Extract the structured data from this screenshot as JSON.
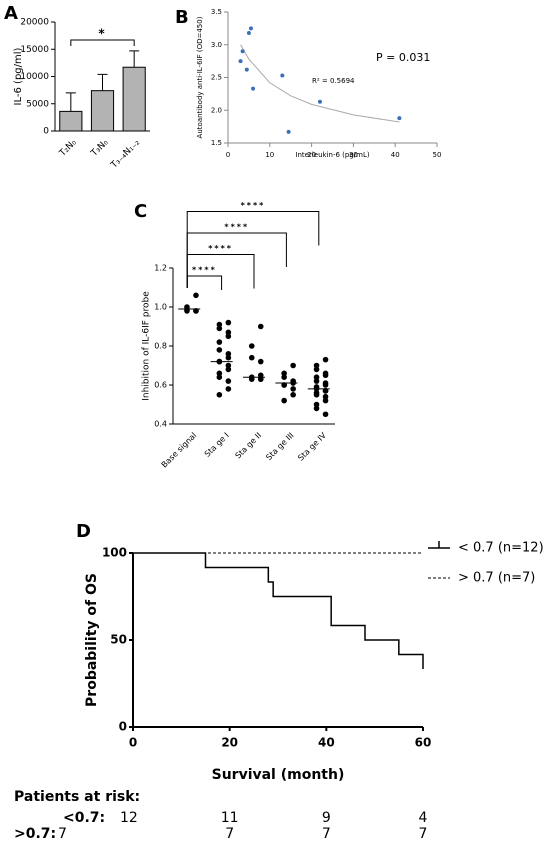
{
  "chart_data": [
    {
      "type": "bar",
      "panel_label": "A",
      "ylabel": "IL-6 (pg/ml)",
      "categories": [
        "T₂N₀",
        "T₃N₀",
        "T₃₋₄N₁₋₂"
      ],
      "values": [
        3600,
        7400,
        11700
      ],
      "errors": [
        3400,
        3000,
        3000
      ],
      "significance_labels": [
        null,
        null,
        "*"
      ],
      "color": "#b3b3b3",
      "ylim": [
        0,
        20000
      ],
      "yticks": [
        0,
        5000,
        10000,
        15000,
        20000
      ]
    },
    {
      "type": "scatter",
      "panel_label": "B",
      "xlabel": "Interleukin-6 (pg/mL)",
      "ylabel": "Autoantibody anti-IL-6IF (OD=450)",
      "x": [
        3,
        3.5,
        4.5,
        5,
        5.5,
        6,
        13,
        14.5,
        22,
        41
      ],
      "values": [
        2.75,
        2.9,
        2.62,
        3.18,
        3.25,
        2.33,
        2.53,
        1.67,
        2.13,
        1.88
      ],
      "color": "#3b6fb6",
      "trend_line": {
        "x": [
          3,
          5,
          10,
          15,
          20,
          30,
          41
        ],
        "y": [
          3.0,
          2.78,
          2.42,
          2.22,
          2.09,
          1.93,
          1.82
        ],
        "color": "#aaaaaa"
      },
      "annotations": [
        "R² = 0.5694",
        "P = 0.031"
      ],
      "xlim": [
        0,
        50
      ],
      "xticks": [
        0,
        10,
        20,
        30,
        40,
        50
      ],
      "ylim": [
        1.5,
        3.5
      ],
      "yticks": [
        1.5,
        {
          "value": 2,
          "label": "2.0"
        },
        2.5,
        {
          "value": 3,
          "label": "3.0"
        },
        3.5
      ]
    },
    {
      "type": "strip",
      "panel_label": "C",
      "ylabel": "Inhibition of IL-6IF probe",
      "categories": [
        "Base signal",
        "Sta ge I",
        "Sta ge II",
        "Sta ge III",
        "Sta ge IV"
      ],
      "groups": [
        [
          1.06,
          1.0,
          0.99,
          0.98,
          0.98,
          0.98
        ],
        [
          0.92,
          0.91,
          0.89,
          0.87,
          0.85,
          0.82,
          0.78,
          0.76,
          0.74,
          0.72,
          0.72,
          0.7,
          0.68,
          0.66,
          0.64,
          0.62,
          0.58,
          0.55
        ],
        [
          0.9,
          0.8,
          0.74,
          0.72,
          0.65,
          0.64,
          0.63,
          0.63,
          0.63
        ],
        [
          0.7,
          0.66,
          0.64,
          0.62,
          0.61,
          0.6,
          0.6,
          0.58,
          0.55,
          0.52
        ],
        [
          0.73,
          0.7,
          0.68,
          0.66,
          0.65,
          0.64,
          0.62,
          0.61,
          0.6,
          0.59,
          0.58,
          0.57,
          0.57,
          0.56,
          0.55,
          0.54,
          0.52,
          0.5,
          0.48,
          0.45
        ]
      ],
      "medians": [
        0.99,
        0.72,
        0.64,
        0.61,
        0.58
      ],
      "significance_labels": [
        null,
        "****",
        "****",
        "****",
        "****"
      ],
      "color": "#000000",
      "ylim": [
        0.4,
        1.2
      ],
      "yticks": [
        0.4,
        0.6,
        0.8,
        {
          "value": 1,
          "label": "1.0"
        },
        1.2
      ]
    },
    {
      "type": "survival",
      "panel_label": "D",
      "xlabel": "Survival (month)",
      "ylabel": "Probability of OS",
      "series": [
        {
          "name": "< 0.7 (n=12)",
          "color": "#000000",
          "line_style": "solid",
          "x": [
            0,
            15,
            28,
            29,
            41,
            48,
            55,
            60
          ],
          "y": [
            100,
            91.7,
            83.3,
            75,
            58.3,
            50,
            41.7,
            33.3
          ]
        },
        {
          "name": "> 0.7 (n=7)",
          "color": "#000000",
          "line_style": "dashed",
          "x": [
            0,
            60
          ],
          "y": [
            100,
            100
          ]
        }
      ],
      "xlim": [
        0,
        60
      ],
      "xticks": [
        0,
        20,
        40,
        60
      ],
      "ylim": [
        0,
        100
      ],
      "yticks": [
        0,
        50,
        100
      ],
      "risk_table": {
        "title": "Patients at risk:",
        "rows": [
          {
            "label": "<0.7:",
            "values": [
              12,
              11,
              9,
              4
            ]
          },
          {
            "label": ">0.7:",
            "values": [
              7,
              7,
              7,
              7
            ]
          }
        ]
      }
    }
  ]
}
